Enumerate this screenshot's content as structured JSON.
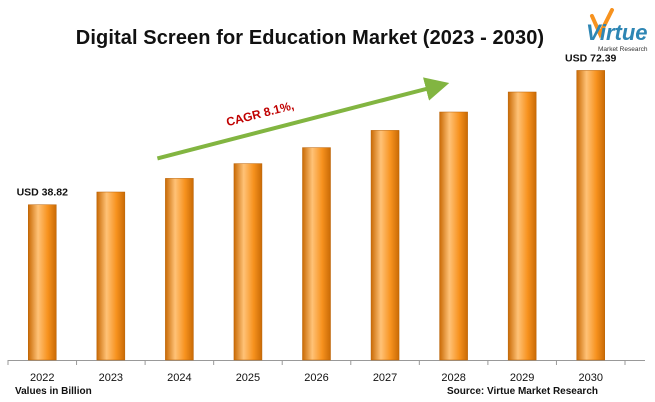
{
  "page": {
    "title": "Digital Screen for Education Market (2023 - 2030)",
    "values_note": "Values in Billion",
    "source_note": "Source: Virtue Market Research",
    "logo": {
      "name": "Virtue",
      "tagline": "Market Research"
    }
  },
  "chart_data": {
    "type": "bar",
    "title": "Digital Screen for Education Market (2023 - 2030)",
    "xlabel": "",
    "ylabel": "",
    "categories": [
      "2022",
      "2023",
      "2024",
      "2025",
      "2026",
      "2027",
      "2028",
      "2029",
      "2030"
    ],
    "values": [
      38.82,
      42.0,
      45.4,
      49.1,
      53.1,
      57.4,
      62.0,
      67.0,
      72.39
    ],
    "ylim": [
      0,
      80
    ],
    "grid": false,
    "legend": "none",
    "data_labels": [
      {
        "category": "2022",
        "text": "USD 38.82"
      },
      {
        "category": "2030",
        "text": "USD 72.39"
      }
    ],
    "annotations": [
      {
        "text": "CAGR 8.1%,",
        "type": "trend-arrow",
        "from": "2024",
        "to": "2028"
      }
    ],
    "colors": {
      "bar_light": "#ffc277",
      "bar_mid": "#f7921e",
      "bar_dark": "#c96a05",
      "arrow": "#82b541",
      "cagr_text": "#c00000",
      "logo": "#2e86b4",
      "axis": "#999999"
    }
  }
}
